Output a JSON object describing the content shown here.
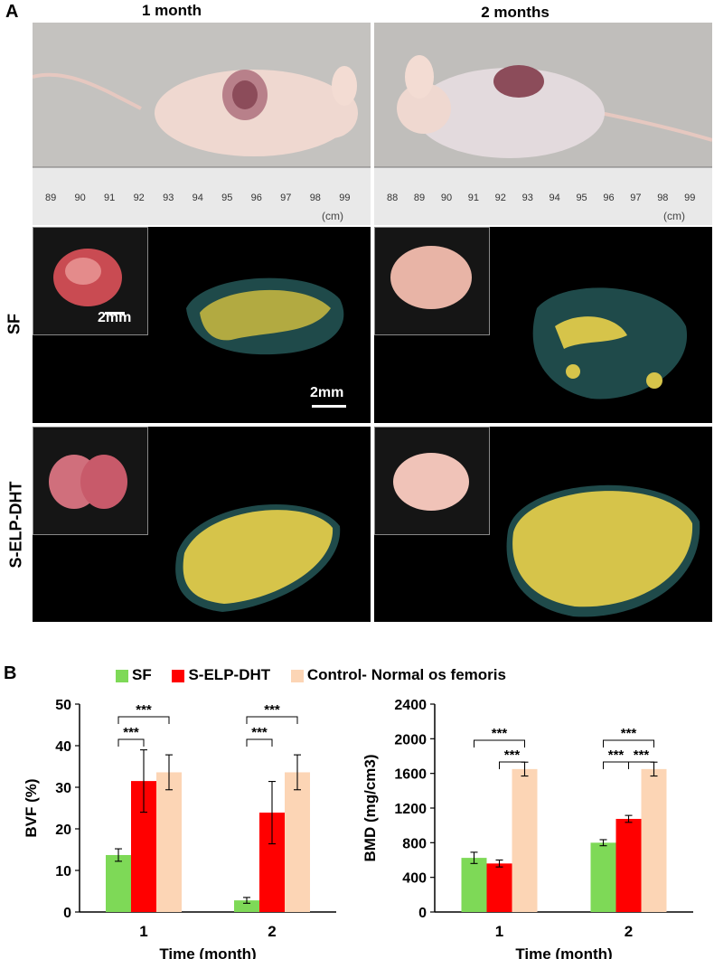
{
  "panel_a": {
    "label": "A",
    "columns": [
      "1 month",
      "2 months"
    ],
    "rows": [
      "SF",
      "S-ELP-DHT"
    ],
    "ruler_unit": "(cm)",
    "ruler_ticks_left": [
      "89",
      "90",
      "91",
      "92",
      "93",
      "94",
      "95",
      "96",
      "97",
      "98",
      "99"
    ],
    "ruler_ticks_right": [
      "88",
      "89",
      "90",
      "91",
      "92",
      "93",
      "94",
      "95",
      "96",
      "97",
      "98",
      "99"
    ],
    "scale_inset": "2mm",
    "scale_main": "2mm",
    "colors": {
      "mouse_bg": "#cfcfcf",
      "ct_teal": "#1f4a4a",
      "ct_yellow": "#d6c44a"
    }
  },
  "panel_b": {
    "label": "B",
    "legend": [
      {
        "name": "SF",
        "color": "#7ed957"
      },
      {
        "name": "S-ELP-DHT",
        "color": "#ff0000"
      },
      {
        "name": "Control- Normal os femoris",
        "color": "#fcd5b5"
      }
    ]
  },
  "chart_data": [
    {
      "type": "bar",
      "categories": [
        "1",
        "2"
      ],
      "series": [
        {
          "name": "SF",
          "values": [
            13.7,
            2.8
          ],
          "errors": [
            1.5,
            0.7
          ]
        },
        {
          "name": "S-ELP-DHT",
          "values": [
            31.5,
            23.9
          ],
          "errors": [
            7.5,
            7.5
          ]
        },
        {
          "name": "Control- Normal os femoris",
          "values": [
            33.6,
            33.6
          ],
          "errors": [
            4.2,
            4.2
          ]
        }
      ],
      "xlabel": "Time (month)",
      "ylabel": "BVF (%)",
      "ylim": [
        0,
        50
      ],
      "yticks": [
        "0",
        "10",
        "20",
        "30",
        "40",
        "50"
      ],
      "significance": [
        "***",
        "***",
        "***",
        "***"
      ]
    },
    {
      "type": "bar",
      "categories": [
        "1",
        "2"
      ],
      "series": [
        {
          "name": "SF",
          "values": [
            625,
            800
          ],
          "errors": [
            65,
            35
          ]
        },
        {
          "name": "S-ELP-DHT",
          "values": [
            560,
            1075
          ],
          "errors": [
            40,
            40
          ]
        },
        {
          "name": "Control- Normal os femoris",
          "values": [
            1650,
            1650
          ],
          "errors": [
            80,
            80
          ]
        }
      ],
      "xlabel": "Time (month)",
      "ylabel": "BMD (mg/cm3)",
      "ylim": [
        0,
        2400
      ],
      "yticks": [
        "0",
        "400",
        "800",
        "1200",
        "1600",
        "2000",
        "2400"
      ],
      "significance": [
        "***",
        "***",
        "***",
        "***",
        "***"
      ]
    }
  ]
}
